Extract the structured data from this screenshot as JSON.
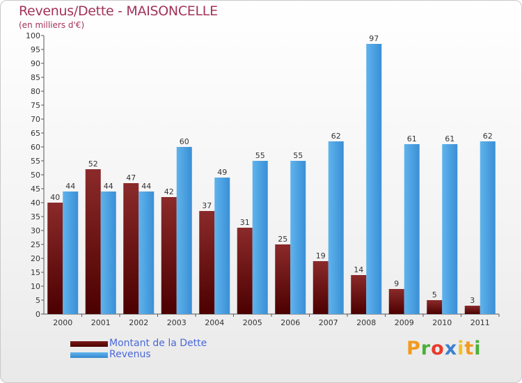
{
  "chart_data": {
    "type": "bar",
    "title": "Revenus/Dette - MAISONCELLE",
    "subtitle": "(en milliers d'€)",
    "categories": [
      "2000",
      "2001",
      "2002",
      "2003",
      "2004",
      "2005",
      "2006",
      "2007",
      "2008",
      "2009",
      "2010",
      "2011"
    ],
    "series": [
      {
        "name": "Montant de la Dette",
        "color": "#6b0f0f",
        "values": [
          40,
          52,
          47,
          42,
          37,
          31,
          25,
          19,
          14,
          9,
          5,
          3
        ]
      },
      {
        "name": "Revenus",
        "color": "#4da6e8",
        "values": [
          44,
          44,
          44,
          60,
          49,
          55,
          55,
          62,
          97,
          61,
          61,
          62
        ]
      }
    ],
    "ylim": [
      0,
      100
    ],
    "ytick_step": 5,
    "grid": false,
    "legend_position": "bottom-left"
  },
  "legend": {
    "dette_label": "Montant de la Dette",
    "revenus_label": "Revenus"
  },
  "logo": {
    "text": "Proxiti"
  }
}
